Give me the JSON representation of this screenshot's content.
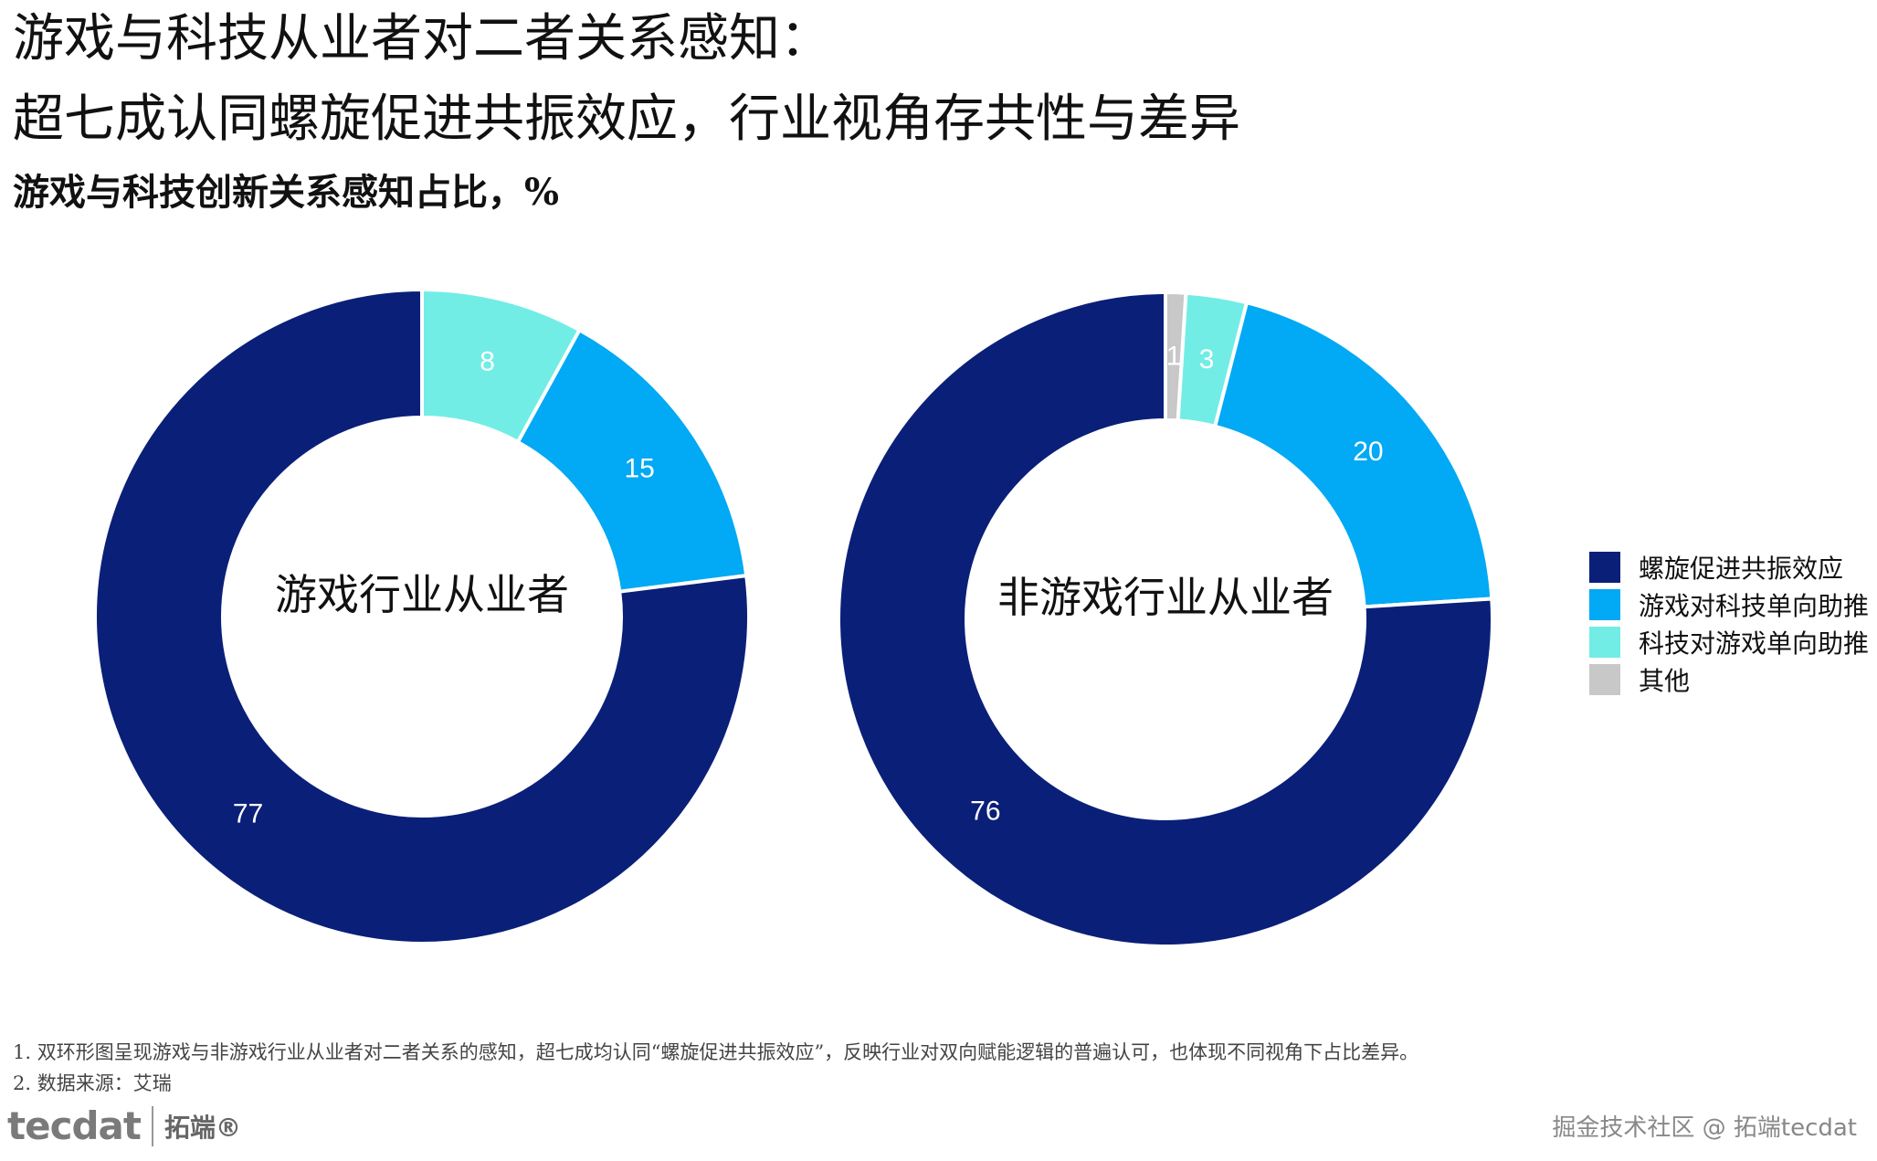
{
  "title_line1": "游戏与科技从业者对二者关系感知：",
  "title_line2": "超七成认同螺旋促进共振效应，行业视角存共性与差异",
  "subtitle": "游戏与科技创新关系感知占比，%",
  "colors": {
    "螺旋促进共振效应": "#0a1f78",
    "游戏对科技单向助推": "#02a9f4",
    "科技对游戏单向助推": "#72ede5",
    "其他": "#c8c8c8"
  },
  "chart_data": [
    {
      "type": "pie",
      "variant": "donut",
      "center_label": "游戏行业从业者",
      "categories": [
        "其他",
        "科技对游戏单向助推",
        "游戏对科技单向助推",
        "螺旋促进共振效应"
      ],
      "values": [
        0,
        8,
        15,
        77
      ]
    },
    {
      "type": "pie",
      "variant": "donut",
      "center_label": "非游戏行业从业者",
      "categories": [
        "其他",
        "科技对游戏单向助推",
        "游戏对科技单向助推",
        "螺旋促进共振效应"
      ],
      "values": [
        1,
        3,
        20,
        76
      ]
    }
  ],
  "legend": {
    "position": "right",
    "items": [
      "螺旋促进共振效应",
      "游戏对科技单向助推",
      "科技对游戏单向助推",
      "其他"
    ]
  },
  "footnotes": [
    "1. 双环形图呈现游戏与非游戏行业从业者对二者关系的感知，超七成均认同“螺旋促进共振效应”，反映行业对双向赋能逻辑的普遍认可，也体现不同视角下占比差异。",
    "2. 数据来源：艾瑞"
  ],
  "logo": {
    "mark": "tecdat",
    "name": "拓端®"
  },
  "watermark": "掘金技术社区 @ 拓端tecdat"
}
